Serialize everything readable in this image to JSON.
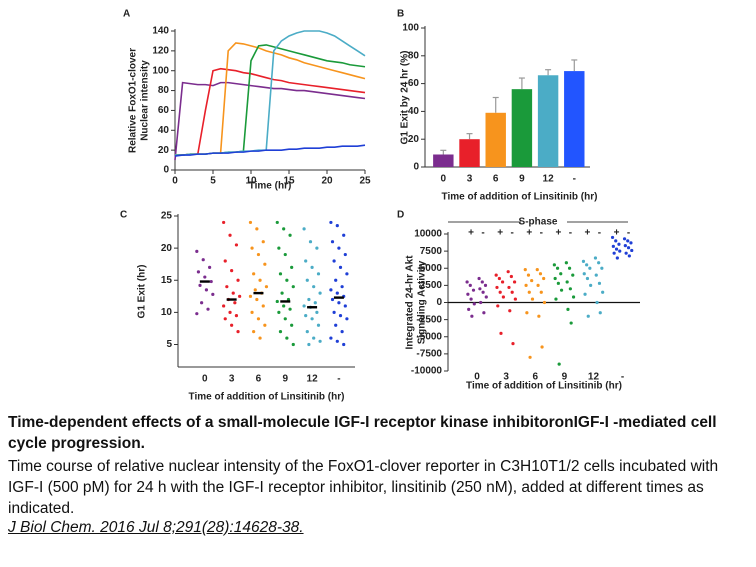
{
  "chart_data": [
    {
      "type": "line",
      "panel": "A",
      "xlabel": "Time (hr)",
      "ylabel": [
        "Relative FoxO1-clover",
        "Nuclear intensity"
      ],
      "x": [
        0,
        1,
        2,
        3,
        4,
        5,
        6,
        7,
        8,
        9,
        10,
        11,
        12,
        13,
        14,
        15,
        16,
        17,
        18,
        19,
        20,
        21,
        22,
        23,
        24,
        25
      ],
      "xlim": [
        0,
        25
      ],
      "xticks": [
        0,
        5,
        10,
        15,
        20,
        25
      ],
      "ylim": [
        0,
        140
      ],
      "yticks": [
        0,
        20,
        40,
        60,
        80,
        100,
        120,
        140
      ],
      "series": [
        {
          "color": "#7b2d8e",
          "values": [
            10,
            88,
            87,
            86,
            86,
            85,
            88,
            88,
            87,
            86,
            85,
            84,
            83,
            82,
            82,
            81,
            80,
            80,
            79,
            78,
            77,
            76,
            75,
            74,
            73,
            72
          ]
        },
        {
          "color": "#e8202a",
          "values": [
            15,
            15,
            16,
            16,
            60,
            100,
            102,
            101,
            100,
            98,
            97,
            95,
            93,
            91,
            90,
            88,
            87,
            86,
            85,
            84,
            83,
            82,
            81,
            80,
            79,
            78
          ]
        },
        {
          "color": "#f7941d",
          "values": [
            15,
            15,
            16,
            16,
            16,
            17,
            17,
            120,
            128,
            127,
            125,
            123,
            120,
            118,
            116,
            113,
            111,
            108,
            106,
            104,
            102,
            100,
            98,
            96,
            94,
            92
          ]
        },
        {
          "color": "#1a9a3a",
          "values": [
            15,
            15,
            16,
            16,
            16,
            17,
            17,
            18,
            18,
            19,
            110,
            125,
            126,
            124,
            122,
            120,
            118,
            116,
            114,
            112,
            110,
            109,
            108,
            106,
            105,
            104
          ]
        },
        {
          "color": "#4bacc6",
          "values": [
            15,
            15,
            16,
            16,
            16,
            17,
            17,
            18,
            18,
            19,
            19,
            20,
            20,
            120,
            130,
            135,
            138,
            140,
            140,
            140,
            138,
            135,
            130,
            125,
            120,
            115
          ]
        },
        {
          "color": "#1f3fd6",
          "values": [
            14,
            15,
            15,
            16,
            16,
            17,
            17,
            17,
            18,
            18,
            19,
            19,
            20,
            20,
            20,
            21,
            21,
            22,
            22,
            22,
            23,
            23,
            24,
            24,
            24,
            25
          ]
        }
      ]
    },
    {
      "type": "bar",
      "panel": "B",
      "xlabel": "Time of addition of Linsitinib (hr)",
      "ylabel": [
        "G1 Exit by 24 hr (%)"
      ],
      "categories": [
        "0",
        "3",
        "6",
        "9",
        "12",
        "-"
      ],
      "values": [
        9,
        20,
        39,
        56,
        66,
        69
      ],
      "errors": [
        3,
        4,
        11,
        8,
        4,
        8
      ],
      "colors": [
        "#7b2d8e",
        "#e8202a",
        "#f7941d",
        "#1a9a3a",
        "#4bacc6",
        "#2255ff"
      ],
      "ylim": [
        0,
        100
      ],
      "yticks": [
        0,
        20,
        40,
        60,
        80,
        100
      ]
    },
    {
      "type": "strip",
      "panel": "C",
      "xlabel": "Time of addition of Linsitinib (hr)",
      "ylabel": [
        "G1 Exit (hr)"
      ],
      "categories": [
        "0",
        "3",
        "6",
        "9",
        "12",
        "-"
      ],
      "colors": [
        "#7b2d8e",
        "#e8202a",
        "#f7941d",
        "#1a9a3a",
        "#4bacc6",
        "#1f3fd6"
      ],
      "ylim": [
        1.5,
        25
      ],
      "yticks": [
        5,
        10,
        15,
        20,
        25
      ],
      "medians": [
        14.8,
        12,
        13,
        11.7,
        10.8,
        12.3
      ],
      "points": [
        [
          19.5,
          18.2,
          17,
          16.3,
          15.5,
          14.8,
          14.2,
          13.5,
          12.8,
          11.5,
          10.5,
          9.8
        ],
        [
          24,
          22,
          20.5,
          18,
          16.5,
          15,
          14,
          13,
          12.5,
          12,
          11.5,
          11,
          10,
          9.5,
          9,
          8,
          7
        ],
        [
          24,
          23,
          21,
          20,
          19,
          17.5,
          16,
          15,
          14,
          13.5,
          13,
          12.5,
          12,
          11,
          10,
          9,
          8,
          7,
          6
        ],
        [
          24,
          23,
          22,
          20,
          19,
          17,
          16,
          15,
          14,
          13,
          12,
          11.7,
          11,
          10.5,
          10,
          9,
          8,
          7,
          6,
          5
        ],
        [
          23,
          21,
          20,
          18,
          17,
          16,
          15,
          14,
          13,
          12,
          11.5,
          11,
          10.8,
          10,
          9.5,
          9,
          8,
          7,
          6,
          5.5,
          5
        ],
        [
          24,
          23.5,
          22,
          21,
          20,
          19,
          18,
          17,
          16,
          15,
          14,
          13.5,
          13,
          12.5,
          12,
          11.5,
          11,
          10,
          9.5,
          9,
          8,
          7,
          6,
          5.5,
          5
        ]
      ]
    },
    {
      "type": "strip",
      "panel": "D",
      "xlabel": "Time of addition of Linsitinib (hr)",
      "ylabel": [
        "Integrated 24-hr Akt",
        "Signaling Activity"
      ],
      "annotation": "S-phase",
      "groups": [
        "+",
        "-"
      ],
      "zero_line": true,
      "categories": [
        "0",
        "3",
        "6",
        "9",
        "12",
        "-"
      ],
      "colors": [
        "#7b2d8e",
        "#e8202a",
        "#f7941d",
        "#1a9a3a",
        "#4bacc6",
        "#1f3fd6"
      ],
      "ylim": [
        -10000,
        10000
      ],
      "yticks": [
        -10000,
        -7500,
        -5000,
        -2500,
        0,
        2500,
        5000,
        7500,
        10000
      ],
      "points": [
        [
          [
            3000,
            2500,
            1800,
            1200,
            500,
            -200,
            -1000,
            -2000
          ],
          [
            3500,
            3000,
            2500,
            2000,
            1500,
            800,
            0,
            -1500
          ]
        ],
        [
          [
            4000,
            3500,
            3000,
            2200,
            1500,
            800,
            -500,
            -4500
          ],
          [
            4500,
            3800,
            3000,
            2200,
            1500,
            500,
            -1200,
            -6000
          ]
        ],
        [
          [
            4800,
            4000,
            3200,
            2500,
            1500,
            500,
            -1500,
            -8000
          ],
          [
            4800,
            4200,
            3500,
            2500,
            1500,
            0,
            -2000,
            -6500
          ]
        ],
        [
          [
            5500,
            5000,
            4200,
            3500,
            2800,
            1800,
            500,
            -9000
          ],
          [
            5800,
            5000,
            4000,
            3000,
            2000,
            800,
            -1000,
            -3000
          ]
        ],
        [
          [
            6000,
            5500,
            5000,
            4200,
            3500,
            2500,
            1200,
            -2000
          ],
          [
            6500,
            5800,
            5000,
            4000,
            2800,
            1500,
            0,
            -1500
          ]
        ],
        [
          [
            9500,
            9000,
            8500,
            8200,
            7800,
            7500,
            7200,
            6500
          ],
          [
            9300,
            9000,
            8700,
            8300,
            8000,
            7600,
            7200,
            6800
          ]
        ]
      ]
    }
  ],
  "caption": {
    "title": "Time-dependent effects of a small-molecule IGF-I receptor kinase inhibitoronIGF-I -mediated cell cycle progression.",
    "body": "Time course of relative nuclear intensity of the FoxO1-clover reporter in C3H10T1/2 cells incubated with IGF-I (500 pM) for 24 h with the IGF-I receptor inhibitor, linsitinib (250 nM), added at different times as indicated.",
    "citation": "J Biol Chem. 2016 Jul 8;291(28):14628-38."
  }
}
